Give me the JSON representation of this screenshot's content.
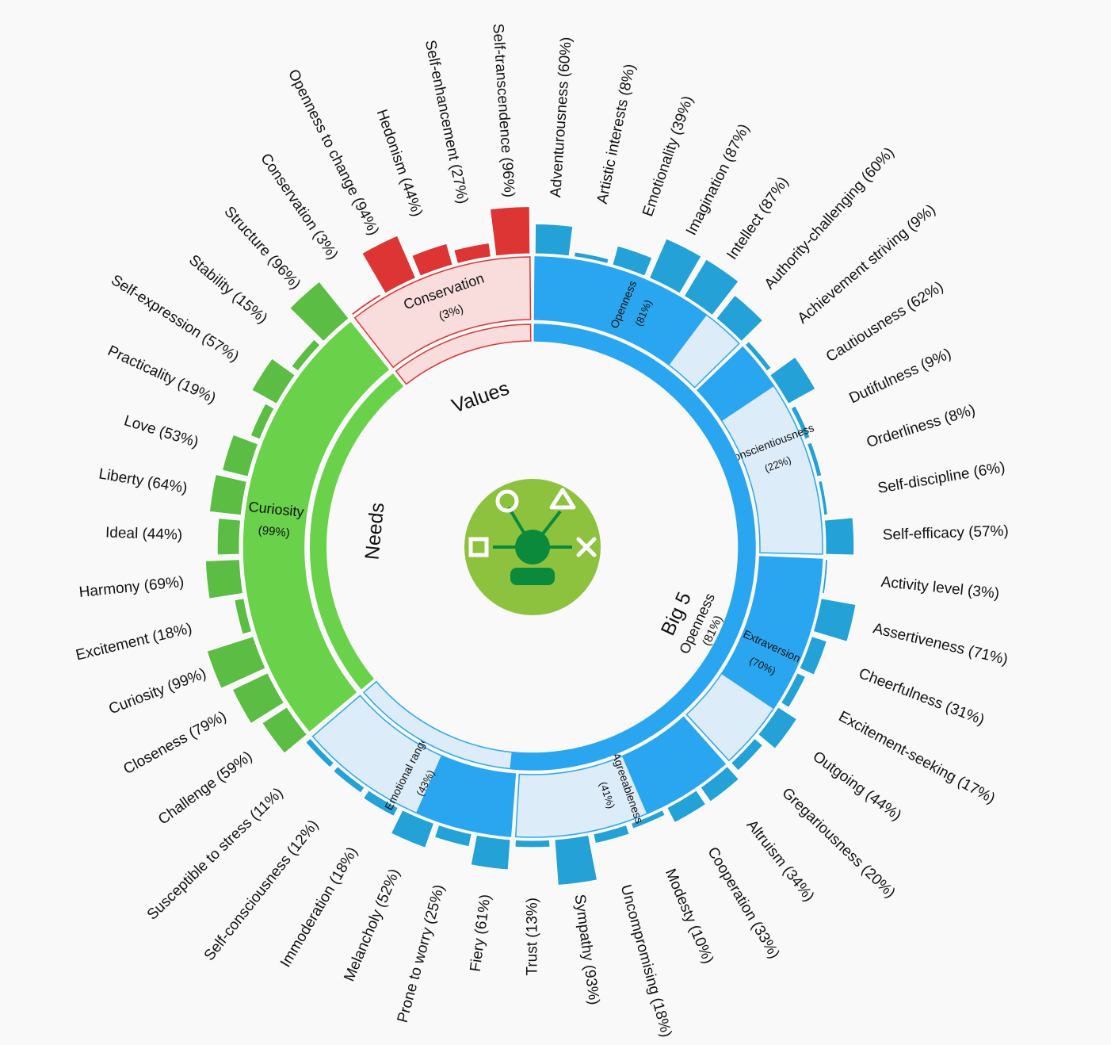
{
  "chart_data": {
    "type": "sunburst",
    "colors": {
      "big5": "#2aa6f0",
      "big5_light": "#dcedf9",
      "big5_outer": "#24a1d6",
      "needs": "#69d14a",
      "needs_outer": "#5cbd44",
      "values": "#dd3434",
      "values_light": "#f9dcdc",
      "badge": "#8cc23e",
      "badge_fg": "#0b8a3b"
    },
    "categories": [
      {
        "id": "big5",
        "name": "Big 5",
        "summary": {
          "name": "Openness",
          "pct": "(81%)"
        }
      },
      {
        "id": "needs",
        "name": "Needs",
        "summary": {
          "name": "Curiosity",
          "pct": "(99%)"
        }
      },
      {
        "id": "values",
        "name": "Values",
        "summary": {
          "name": "Conservation",
          "pct": "(3%)"
        }
      }
    ],
    "traits": [
      {
        "name": "Openness",
        "pct": "(81%)",
        "value": 81
      },
      {
        "name": "Conscientiousness",
        "pct": "(22%)",
        "value": 22
      },
      {
        "name": "Extraversion",
        "pct": "(70%)",
        "value": 70
      },
      {
        "name": "Agreeableness",
        "pct": "(41%)",
        "value": 41
      },
      {
        "name": "Emotional range",
        "pct": "(43%)",
        "value": 43
      }
    ],
    "facets": [
      {
        "label": "Adventurousness (60%)",
        "value": 60,
        "cat": "big5"
      },
      {
        "label": "Artistic interests (8%)",
        "value": 8,
        "cat": "big5"
      },
      {
        "label": "Emotionality (39%)",
        "value": 39,
        "cat": "big5"
      },
      {
        "label": "Imagination (87%)",
        "value": 87,
        "cat": "big5"
      },
      {
        "label": "Intellect (87%)",
        "value": 87,
        "cat": "big5"
      },
      {
        "label": "Authority-challenging (60%)",
        "value": 60,
        "cat": "big5"
      },
      {
        "label": "Achievement striving (9%)",
        "value": 9,
        "cat": "big5"
      },
      {
        "label": "Cautiousness (62%)",
        "value": 62,
        "cat": "big5"
      },
      {
        "label": "Dutifulness (9%)",
        "value": 9,
        "cat": "big5"
      },
      {
        "label": "Orderliness (8%)",
        "value": 8,
        "cat": "big5"
      },
      {
        "label": "Self-discipline (6%)",
        "value": 6,
        "cat": "big5"
      },
      {
        "label": "Self-efficacy (57%)",
        "value": 57,
        "cat": "big5"
      },
      {
        "label": "Activity level (3%)",
        "value": 3,
        "cat": "big5"
      },
      {
        "label": "Assertiveness (71%)",
        "value": 71,
        "cat": "big5"
      },
      {
        "label": "Cheerfulness (31%)",
        "value": 31,
        "cat": "big5"
      },
      {
        "label": "Excitement-seeking (17%)",
        "value": 17,
        "cat": "big5"
      },
      {
        "label": "Outgoing (44%)",
        "value": 44,
        "cat": "big5"
      },
      {
        "label": "Gregariousness (20%)",
        "value": 20,
        "cat": "big5"
      },
      {
        "label": "Altruism (34%)",
        "value": 34,
        "cat": "big5"
      },
      {
        "label": "Cooperation (33%)",
        "value": 33,
        "cat": "big5"
      },
      {
        "label": "Modesty (10%)",
        "value": 10,
        "cat": "big5"
      },
      {
        "label": "Uncompromising (18%)",
        "value": 18,
        "cat": "big5"
      },
      {
        "label": "Sympathy (93%)",
        "value": 93,
        "cat": "big5"
      },
      {
        "label": "Trust (13%)",
        "value": 13,
        "cat": "big5"
      },
      {
        "label": "Fiery (61%)",
        "value": 61,
        "cat": "big5"
      },
      {
        "label": "Prone to worry (25%)",
        "value": 25,
        "cat": "big5"
      },
      {
        "label": "Melancholy (52%)",
        "value": 52,
        "cat": "big5"
      },
      {
        "label": "Immoderation (18%)",
        "value": 18,
        "cat": "big5"
      },
      {
        "label": "Self-consciousness (12%)",
        "value": 12,
        "cat": "big5"
      },
      {
        "label": "Susceptible to stress (11%)",
        "value": 11,
        "cat": "big5"
      },
      {
        "label": "Challenge (59%)",
        "value": 59,
        "cat": "needs"
      },
      {
        "label": "Closeness (79%)",
        "value": 79,
        "cat": "needs"
      },
      {
        "label": "Curiosity (99%)",
        "value": 99,
        "cat": "needs"
      },
      {
        "label": "Excitement (18%)",
        "value": 18,
        "cat": "needs"
      },
      {
        "label": "Harmony (69%)",
        "value": 69,
        "cat": "needs"
      },
      {
        "label": "Ideal (44%)",
        "value": 44,
        "cat": "needs"
      },
      {
        "label": "Liberty (64%)",
        "value": 64,
        "cat": "needs"
      },
      {
        "label": "Love (53%)",
        "value": 53,
        "cat": "needs"
      },
      {
        "label": "Practicality (19%)",
        "value": 19,
        "cat": "needs"
      },
      {
        "label": "Self-expression (57%)",
        "value": 57,
        "cat": "needs"
      },
      {
        "label": "Stability (15%)",
        "value": 15,
        "cat": "needs"
      },
      {
        "label": "Structure (96%)",
        "value": 96,
        "cat": "needs"
      },
      {
        "label": "Conservation (3%)",
        "value": 3,
        "cat": "values"
      },
      {
        "label": "Openness to change (94%)",
        "value": 94,
        "cat": "values"
      },
      {
        "label": "Hedonism (44%)",
        "value": 44,
        "cat": "values"
      },
      {
        "label": "Self-enhancement (27%)",
        "value": 27,
        "cat": "values"
      },
      {
        "label": "Self-transcendence (96%)",
        "value": 96,
        "cat": "values"
      }
    ]
  }
}
